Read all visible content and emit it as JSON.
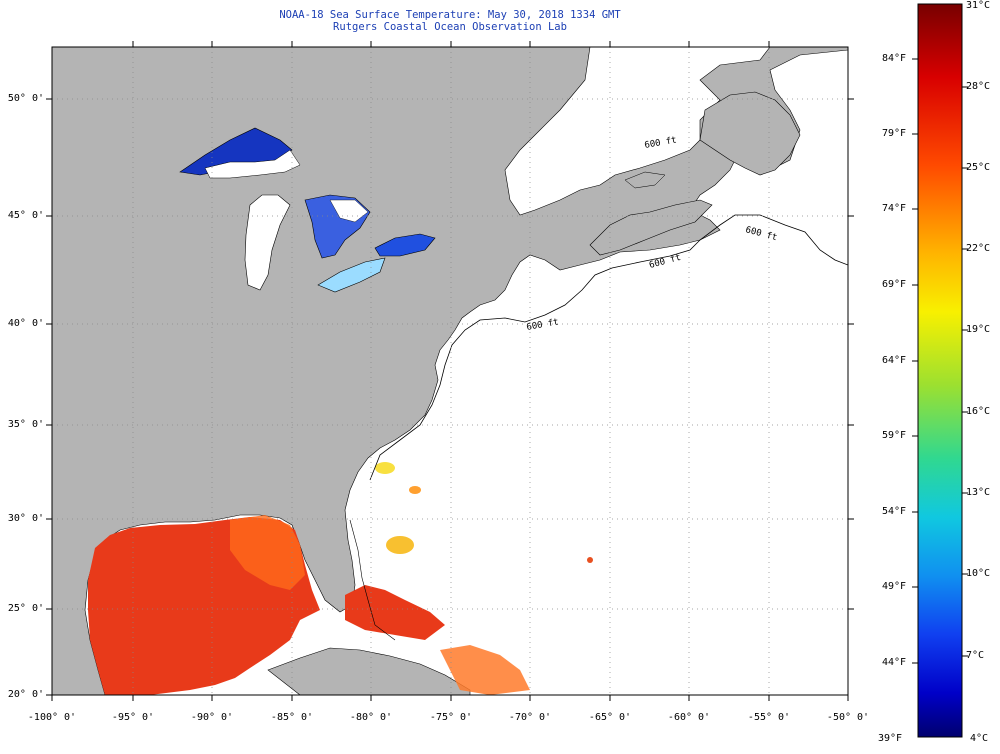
{
  "title": {
    "line1": "NOAA-18 Sea Surface Temperature:  May 30, 2018 1334 GMT",
    "line2": "Rutgers Coastal Ocean Observation Lab"
  },
  "map": {
    "lat_labels": [
      "50° 0'",
      "45° 0'",
      "40° 0'",
      "35° 0'",
      "30° 0'",
      "25° 0'",
      "20° 0'"
    ],
    "lon_labels": [
      "-100° 0'",
      "-95° 0'",
      "-90° 0'",
      "-85° 0'",
      "-80° 0'",
      "-75° 0'",
      "-70° 0'",
      "-65° 0'",
      "-60° 0'",
      "-55° 0'",
      "-50° 0'"
    ],
    "contour_labels": [
      "600 ft",
      "600 ft",
      "600 ft",
      "600 ft"
    ],
    "colors": {
      "land": "#b4b4b4",
      "ocean": "#ffffff",
      "gulf_sst": "#e83a1a",
      "lake_cold": "#1535c0"
    }
  },
  "colorbar": {
    "fahrenheit_labels": [
      "84°F",
      "79°F",
      "74°F",
      "69°F",
      "64°F",
      "59°F",
      "54°F",
      "49°F",
      "44°F",
      "39°F"
    ],
    "celsius_labels": [
      "31°C",
      "28°C",
      "25°C",
      "22°C",
      "19°C",
      "16°C",
      "13°C",
      "10°C",
      "7°C",
      "4°C"
    ],
    "range_celsius": [
      4,
      31
    ],
    "colors_top_to_bottom": [
      "#7a0000",
      "#e00000",
      "#ff6a00",
      "#ffc400",
      "#f8f800",
      "#9be030",
      "#30d890",
      "#10c0e0",
      "#1080f0",
      "#1030f0",
      "#0000c0",
      "#000078"
    ]
  }
}
